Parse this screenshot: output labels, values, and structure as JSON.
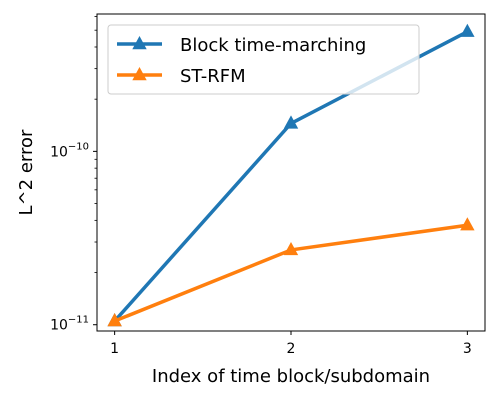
{
  "chart_data": {
    "type": "line",
    "x": [
      1,
      2,
      3
    ],
    "xlabel": "Index of time block/subdomain",
    "ylabel": "L^2 error",
    "yscale": "log",
    "ylim": [
      9.2e-12,
      6.2e-10
    ],
    "xticks": [
      "1",
      "2",
      "3"
    ],
    "yticks": [
      {
        "value": 1e-11,
        "base": "10",
        "exp": "−11"
      },
      {
        "value": 1e-10,
        "base": "10",
        "exp": "−10"
      }
    ],
    "grid": false,
    "legend_position": "upper-left",
    "series": [
      {
        "name": "Block time-marching",
        "color": "#1f77b4",
        "values": [
          1.05e-11,
          1.45e-10,
          4.9e-10
        ]
      },
      {
        "name": "ST-RFM",
        "color": "#ff7f0e",
        "values": [
          1.05e-11,
          2.7e-11,
          3.75e-11
        ]
      }
    ]
  }
}
